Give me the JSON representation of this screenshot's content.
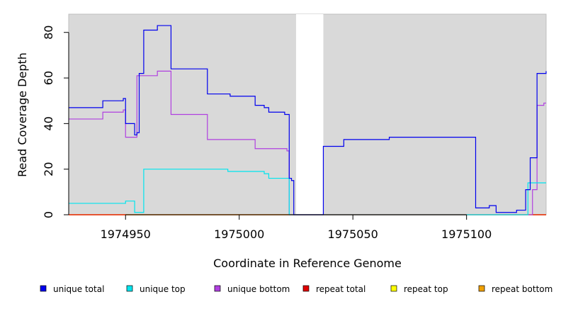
{
  "chart_data": {
    "type": "line",
    "title": "",
    "xlabel": "Coordinate in Reference Genome",
    "ylabel": "Read Coverage Depth",
    "xlim": [
      1974925,
      1975135
    ],
    "ylim": [
      0,
      88
    ],
    "x_ticks": [
      1974950,
      1975000,
      1975050,
      1975100
    ],
    "y_ticks": [
      0,
      20,
      40,
      60,
      80
    ],
    "x_tick_labels": [
      "1974950",
      "1975000",
      "1975050",
      "1975100"
    ],
    "y_tick_labels": [
      "0",
      "20",
      "40",
      "60",
      "80"
    ],
    "grid": false,
    "background": "#d9d9d9",
    "gap_regions": [
      [
        1975025,
        1975037
      ]
    ],
    "legend_position": "bottom",
    "series": [
      {
        "name": "unique total",
        "color": "#0000ee",
        "step_points": [
          [
            1974925,
            47
          ],
          [
            1974940,
            50
          ],
          [
            1974949,
            51
          ],
          [
            1974950,
            40
          ],
          [
            1974954,
            35
          ],
          [
            1974955,
            36
          ],
          [
            1974956,
            62
          ],
          [
            1974958,
            81
          ],
          [
            1974964,
            83
          ],
          [
            1974970,
            64
          ],
          [
            1974986,
            53
          ],
          [
            1974996,
            52
          ],
          [
            1975007,
            48
          ],
          [
            1975011,
            47
          ],
          [
            1975013,
            45
          ],
          [
            1975020,
            44
          ],
          [
            1975022,
            16
          ],
          [
            1975023,
            15
          ],
          [
            1975024,
            0
          ],
          [
            1975037,
            30
          ],
          [
            1975046,
            33
          ],
          [
            1975066,
            34
          ],
          [
            1975104,
            3
          ],
          [
            1975110,
            4
          ],
          [
            1975113,
            1
          ],
          [
            1975122,
            2
          ],
          [
            1975126,
            11
          ],
          [
            1975128,
            25
          ],
          [
            1975131,
            62
          ],
          [
            1975135,
            63
          ]
        ]
      },
      {
        "name": "unique top",
        "color": "#00e5ee",
        "step_points": [
          [
            1974925,
            5
          ],
          [
            1974950,
            6
          ],
          [
            1974954,
            1
          ],
          [
            1974958,
            20
          ],
          [
            1974995,
            19
          ],
          [
            1975011,
            18
          ],
          [
            1975013,
            16
          ],
          [
            1975022,
            0
          ],
          [
            1975127,
            14
          ],
          [
            1975135,
            14
          ]
        ]
      },
      {
        "name": "unique bottom",
        "color": "#b040e0",
        "step_points": [
          [
            1974925,
            42
          ],
          [
            1974940,
            45
          ],
          [
            1974949,
            46
          ],
          [
            1974950,
            34
          ],
          [
            1974955,
            61
          ],
          [
            1974964,
            63
          ],
          [
            1974970,
            44
          ],
          [
            1974986,
            33
          ],
          [
            1975007,
            29
          ],
          [
            1975021,
            28
          ],
          [
            1975022,
            0
          ],
          [
            1975129,
            11
          ],
          [
            1975131,
            48
          ],
          [
            1975134,
            49
          ],
          [
            1975135,
            49
          ]
        ]
      },
      {
        "name": "repeat total",
        "color": "#e00000",
        "step_points": [
          [
            1974925,
            0
          ],
          [
            1975135,
            0
          ]
        ]
      },
      {
        "name": "repeat top",
        "color": "#ffff00",
        "step_points": [
          [
            1974925,
            0
          ],
          [
            1975135,
            0
          ]
        ]
      },
      {
        "name": "repeat bottom",
        "color": "#f0a000",
        "step_points": [
          [
            1974925,
            0
          ],
          [
            1975135,
            0
          ]
        ]
      }
    ]
  }
}
